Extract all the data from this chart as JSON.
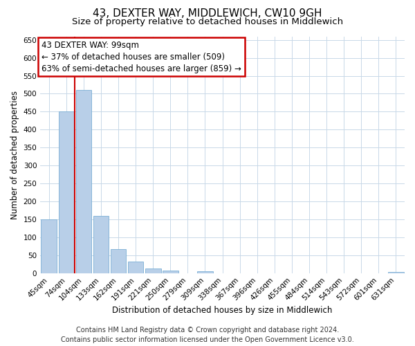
{
  "title": "43, DEXTER WAY, MIDDLEWICH, CW10 9GH",
  "subtitle": "Size of property relative to detached houses in Middlewich",
  "xlabel": "Distribution of detached houses by size in Middlewich",
  "ylabel": "Number of detached properties",
  "footer_lines": [
    "Contains HM Land Registry data © Crown copyright and database right 2024.",
    "Contains public sector information licensed under the Open Government Licence v3.0."
  ],
  "bin_labels": [
    "45sqm",
    "74sqm",
    "104sqm",
    "133sqm",
    "162sqm",
    "191sqm",
    "221sqm",
    "250sqm",
    "279sqm",
    "309sqm",
    "338sqm",
    "367sqm",
    "396sqm",
    "426sqm",
    "455sqm",
    "484sqm",
    "514sqm",
    "543sqm",
    "572sqm",
    "601sqm",
    "631sqm"
  ],
  "bar_values": [
    150,
    450,
    510,
    160,
    67,
    32,
    13,
    8,
    0,
    5,
    0,
    0,
    0,
    0,
    0,
    0,
    0,
    0,
    0,
    0,
    3
  ],
  "bar_color": "#b8cfe8",
  "bar_edgecolor": "#7aafd4",
  "red_line_x_label": "104sqm",
  "annotation_line1": "43 DEXTER WAY: 99sqm",
  "annotation_line2": "← 37% of detached houses are smaller (509)",
  "annotation_line3": "63% of semi-detached houses are larger (859) →",
  "annotation_box_edgecolor": "#cc0000",
  "red_line_color": "#cc0000",
  "ylim": [
    0,
    660
  ],
  "yticks": [
    0,
    50,
    100,
    150,
    200,
    250,
    300,
    350,
    400,
    450,
    500,
    550,
    600,
    650
  ],
  "background_color": "#ffffff",
  "grid_color": "#c8d8e8",
  "title_fontsize": 11,
  "subtitle_fontsize": 9.5,
  "axis_label_fontsize": 8.5,
  "tick_fontsize": 7.5,
  "annot_fontsize": 8.5,
  "footer_fontsize": 7
}
